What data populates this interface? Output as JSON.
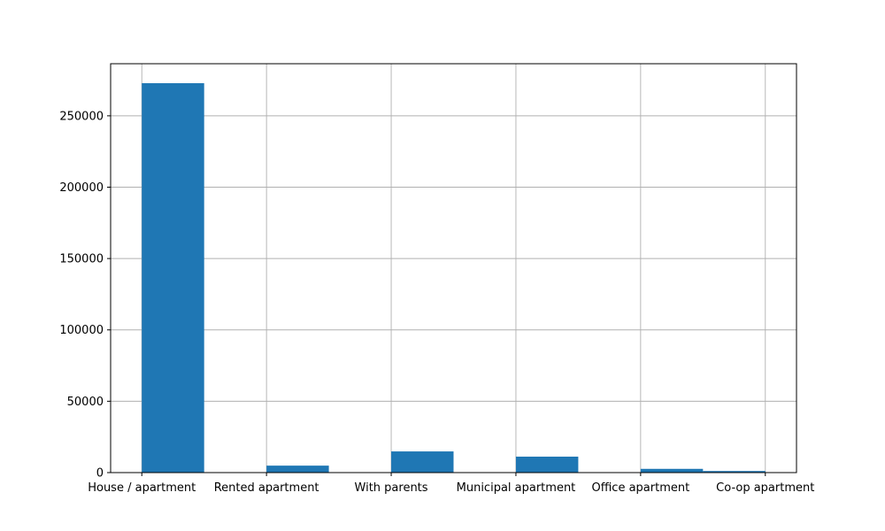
{
  "chart_data": {
    "type": "bar",
    "title": "",
    "xlabel": "",
    "ylabel": "",
    "categories": [
      "House / apartment",
      "Rented apartment",
      "With parents",
      "Municipal apartment",
      "Office apartment",
      "Co-op apartment"
    ],
    "values": [
      272868,
      4881,
      14840,
      11183,
      2617,
      1122
    ],
    "bar_color": "#1f77b4",
    "yticks": [
      0,
      50000,
      100000,
      150000,
      200000,
      250000
    ],
    "ytick_labels": [
      "0",
      "50000",
      "100000",
      "150000",
      "200000",
      "250000"
    ],
    "ylim": [
      0,
      286511
    ],
    "xlim": [
      -0.25,
      5.25
    ],
    "grid": true,
    "legend": "none",
    "histogram_bins": 10
  }
}
